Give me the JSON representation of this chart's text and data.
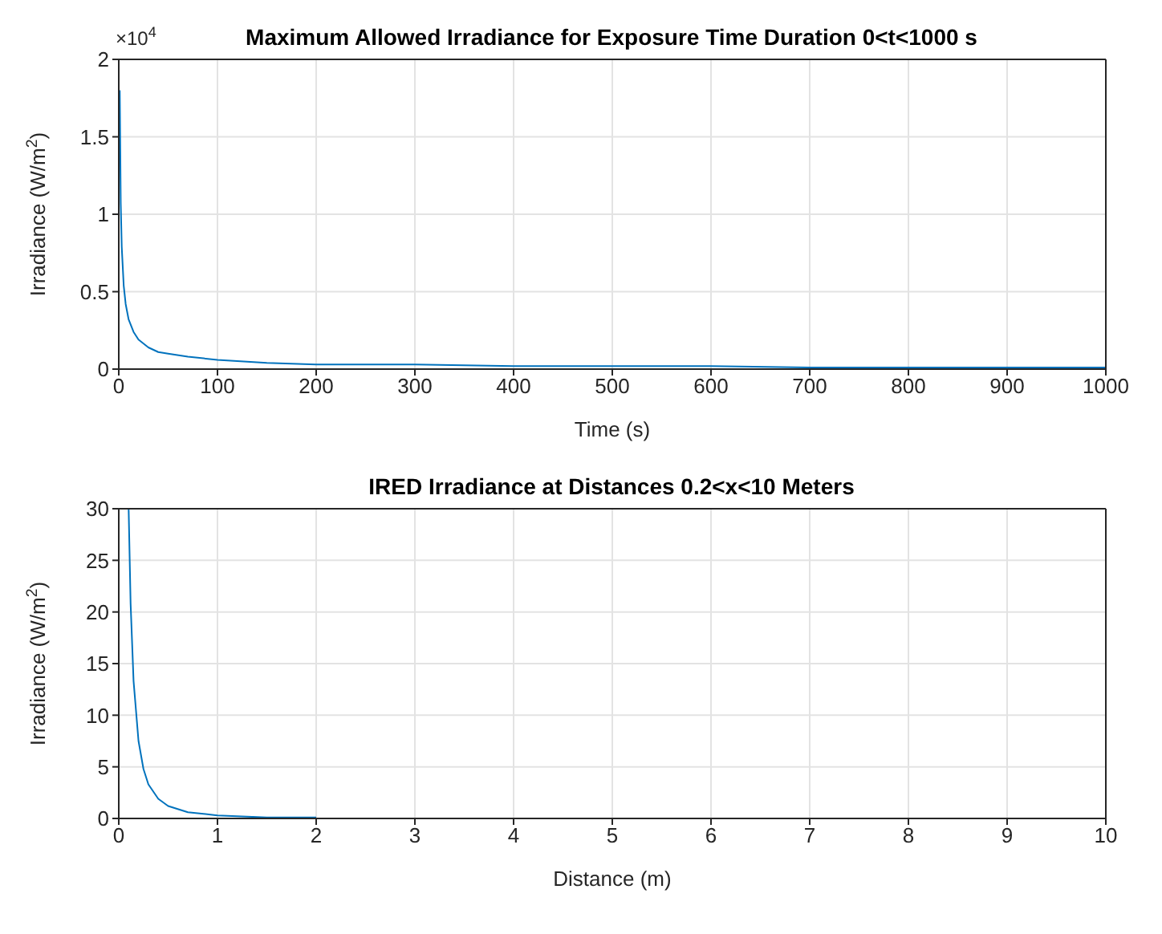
{
  "chart_data": [
    {
      "type": "line",
      "title": "Maximum Allowed Irradiance for Exposure Time Duration 0<t<1000 s",
      "xlabel": "Time (s)",
      "ylabel": "Irradiance (W/m$^{2}$)",
      "annotations": [
        "×10$^{4}$"
      ],
      "series": [
        {
          "color": "#0072bd",
          "x": [
            1,
            2,
            3,
            5,
            7,
            10,
            15,
            20,
            30,
            40,
            50,
            70,
            100,
            150,
            200,
            300,
            400,
            500,
            600,
            700,
            800,
            900,
            1000
          ],
          "values": [
            1.8,
            1.07,
            0.79,
            0.54,
            0.42,
            0.32,
            0.24,
            0.19,
            0.14,
            0.11,
            0.1,
            0.08,
            0.06,
            0.04,
            0.03,
            0.03,
            0.02,
            0.02,
            0.02,
            0.01,
            0.01,
            0.01,
            0.01
          ]
        }
      ],
      "xlim": [
        0,
        1000
      ],
      "xticks": [
        0,
        100,
        200,
        300,
        400,
        500,
        600,
        700,
        800,
        900,
        1000
      ],
      "ylim": [
        0,
        2
      ],
      "yticks": [
        0,
        0.5,
        1,
        1.5,
        2
      ],
      "grid": true,
      "legend": false,
      "marker": "none",
      "line_style": "solid"
    },
    {
      "type": "line",
      "title": "IRED Irradiance at Distances 0.2<x<10 Meters",
      "xlabel": "Distance (m)",
      "ylabel": "Irradiance (W/m$^{2}$)",
      "series": [
        {
          "color": "#0072bd",
          "x": [
            0.1,
            0.12,
            0.15,
            0.2,
            0.25,
            0.3,
            0.4,
            0.5,
            0.7,
            1,
            1.5,
            2
          ],
          "values": [
            30,
            20.8,
            13.3,
            7.5,
            4.8,
            3.3,
            1.9,
            1.2,
            0.6,
            0.3,
            0.1,
            0.1
          ]
        }
      ],
      "xlim": [
        0,
        10
      ],
      "xticks": [
        0,
        1,
        2,
        3,
        4,
        5,
        6,
        7,
        8,
        9,
        10
      ],
      "ylim": [
        0,
        30
      ],
      "yticks": [
        0,
        5,
        10,
        15,
        20,
        25,
        30
      ],
      "grid": true,
      "legend": false,
      "marker": "none",
      "line_style": "solid"
    }
  ]
}
